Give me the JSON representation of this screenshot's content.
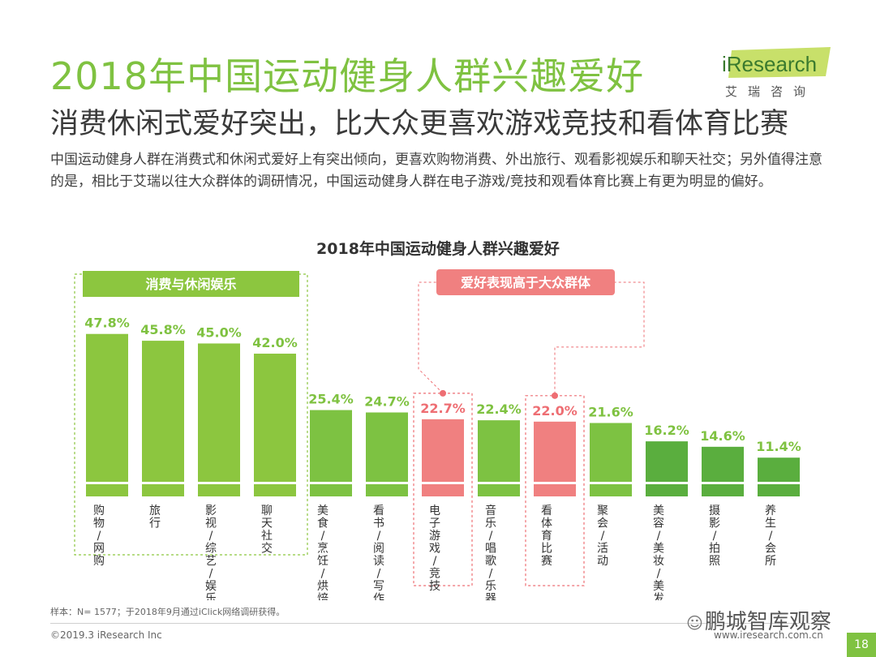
{
  "header": {
    "title": "2018年中国运动健身人群兴趣爱好",
    "subtitle": "消费休闲式爱好突出，比大众更喜欢游戏竞技和看体育比赛",
    "description": "中国运动健身人群在消费式和休闲式爱好上有突出倾向，更喜欢购物消费、外出旅行、观看影视娱乐和聊天社交；另外值得注意的是，相比于艾瑞以往大众群体的调研情况，中国运动健身人群在电子游戏/竞技和观看体育比赛上有更为明显的偏好。"
  },
  "logo": {
    "text_i": "i",
    "text_rest": "Research",
    "sub": "艾瑞咨询"
  },
  "chart_data": {
    "type": "bar",
    "title": "2018年中国运动健身人群兴趣爱好",
    "categories": [
      "购物/网购",
      "旅行",
      "影视/综艺/娱乐",
      "聊天社交",
      "美食/烹饪/烘焙",
      "看书/阅读/写作",
      "电子游戏/竞技",
      "音乐/唱歌/乐器",
      "看体育比赛",
      "聚会/活动",
      "美容/美妆/美发",
      "摄影/拍照",
      "养生/会所"
    ],
    "values": [
      47.8,
      45.8,
      45.0,
      42.0,
      25.4,
      24.7,
      22.7,
      22.4,
      22.0,
      21.6,
      16.2,
      14.6,
      11.4
    ],
    "value_labels": [
      "47.8%",
      "45.8%",
      "45.0%",
      "42.0%",
      "25.4%",
      "24.7%",
      "22.7%",
      "22.4%",
      "22.0%",
      "21.6%",
      "16.2%",
      "14.6%",
      "11.4%"
    ],
    "bar_colors": [
      "#8cc63f",
      "#8cc63f",
      "#8cc63f",
      "#8cc63f",
      "#7dc242",
      "#7dc242",
      "#f08080",
      "#7dc242",
      "#f08080",
      "#7dc242",
      "#5aae3e",
      "#5aae3e",
      "#5aae3e"
    ],
    "ylim": [
      0,
      50
    ],
    "group_labels": {
      "consumption": "消费与休闲娱乐",
      "above_public": "爱好表现高于大众群体"
    },
    "colors": {
      "green": "#8cc63f",
      "pink": "#f08080",
      "label_green": "#7fc241",
      "label_pink": "#ee6e73"
    }
  },
  "footer": {
    "sample": "样本：N= 1577；于2018年9月通过iClick网络调研获得。",
    "copyright": "©2019.3 iResearch Inc",
    "website": "www.iresearch.com.cn",
    "page": "18",
    "watermark": "鹏城智库观察"
  }
}
